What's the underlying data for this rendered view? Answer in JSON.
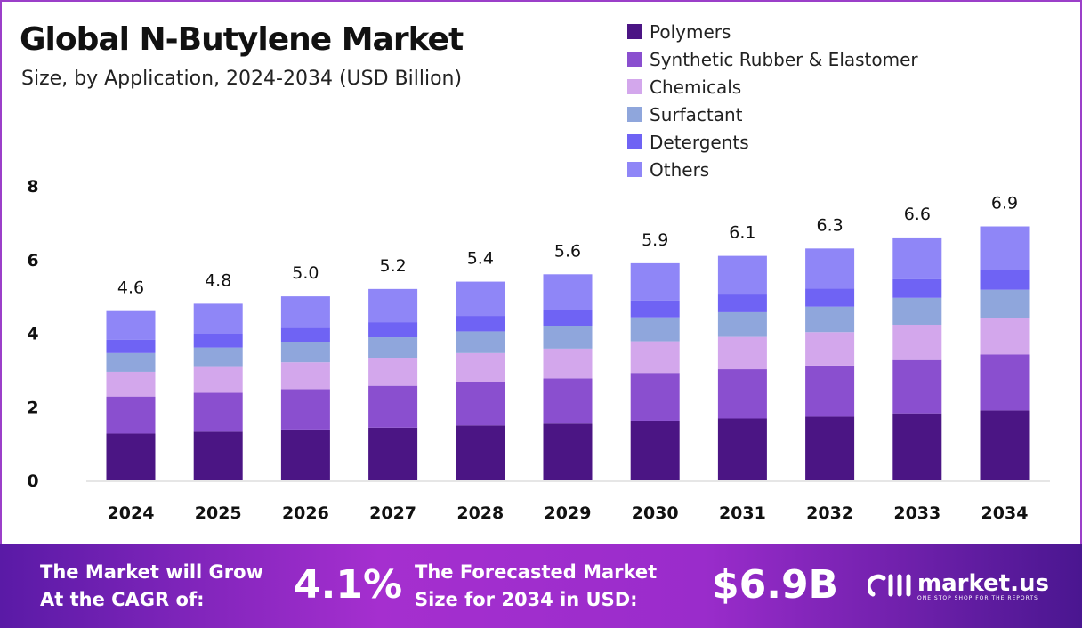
{
  "chart_data": {
    "type": "bar",
    "stacked": true,
    "title": "Global N-Butylene Market",
    "subtitle": "Size, by Application, 2024-2034 (USD Billion)",
    "categories": [
      "2024",
      "2025",
      "2026",
      "2027",
      "2028",
      "2029",
      "2030",
      "2031",
      "2032",
      "2033",
      "2034"
    ],
    "totals": [
      "4.6",
      "4.8",
      "5.0",
      "5.2",
      "5.4",
      "5.6",
      "5.9",
      "6.1",
      "6.3",
      "6.6",
      "6.9"
    ],
    "series": [
      {
        "name": "Polymers",
        "color": "#4b1584",
        "values": [
          1.27,
          1.32,
          1.38,
          1.43,
          1.49,
          1.54,
          1.62,
          1.68,
          1.73,
          1.82,
          1.9
        ]
      },
      {
        "name": "Synthetic Rubber & Elastomer",
        "color": "#8a4fcf",
        "values": [
          1.01,
          1.06,
          1.1,
          1.14,
          1.19,
          1.23,
          1.3,
          1.34,
          1.39,
          1.45,
          1.52
        ]
      },
      {
        "name": "Chemicals",
        "color": "#d3a7ec",
        "values": [
          0.67,
          0.7,
          0.73,
          0.75,
          0.78,
          0.81,
          0.86,
          0.88,
          0.91,
          0.96,
          1.0
        ]
      },
      {
        "name": "Surfactant",
        "color": "#8fa6dc",
        "values": [
          0.51,
          0.53,
          0.55,
          0.57,
          0.59,
          0.62,
          0.65,
          0.67,
          0.69,
          0.73,
          0.76
        ]
      },
      {
        "name": "Detergents",
        "color": "#6f63f4",
        "values": [
          0.36,
          0.37,
          0.39,
          0.41,
          0.42,
          0.44,
          0.46,
          0.48,
          0.49,
          0.51,
          0.54
        ]
      },
      {
        "name": "Others",
        "color": "#8f86f7",
        "values": [
          0.78,
          0.82,
          0.85,
          0.9,
          0.93,
          0.96,
          1.01,
          1.05,
          1.09,
          1.13,
          1.18
        ]
      }
    ],
    "yticks": [
      "0",
      "2",
      "4",
      "6",
      "8"
    ],
    "ylim": [
      0,
      8
    ],
    "grid": false,
    "legend": "top-right"
  },
  "footer": {
    "cagr_text_1": "The Market will Grow",
    "cagr_text_2": "At the CAGR of:",
    "cagr_value": "4.1%",
    "forecast_text_1": "The Forecasted Market",
    "forecast_text_2": "Size for 2034 in USD:",
    "forecast_value": "$6.9B",
    "logo_name": "market.us",
    "logo_tagline": "ONE STOP SHOP FOR THE REPORTS"
  }
}
